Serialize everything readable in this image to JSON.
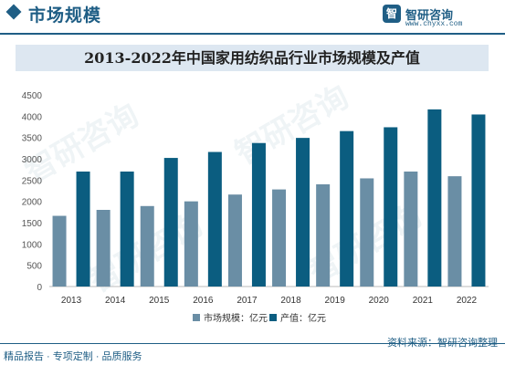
{
  "header": {
    "section_title": "市场规模",
    "logo_name": "智研咨询",
    "logo_url": "www.chyxx.com"
  },
  "footer": {
    "left": "精品报告 · 专项定制 · 品质服务",
    "right": "资料来源：智研咨询整理"
  },
  "watermark": "智研咨询",
  "colors": {
    "brand": "#1f5e85",
    "series_market": "#6a8ea5",
    "series_output": "#0b5d80",
    "title_band": "#dde7f1"
  },
  "chart_data": {
    "type": "bar",
    "title": "2013-2022年中国家用纺织品行业市场规模及产值",
    "xlabel": "",
    "ylabel": "",
    "ylim": [
      0,
      4500
    ],
    "yticks": [
      0,
      500,
      1000,
      1500,
      2000,
      2500,
      3000,
      3500,
      4000,
      4500
    ],
    "grid": false,
    "legend_position": "bottom",
    "categories": [
      "2013",
      "2014",
      "2015",
      "2016",
      "2017",
      "2018",
      "2019",
      "2020",
      "2021",
      "2022"
    ],
    "series": [
      {
        "name": "市场规模：亿元",
        "values": [
          1660,
          1800,
          1890,
          2000,
          2160,
          2280,
          2400,
          2540,
          2700,
          2590
        ]
      },
      {
        "name": "产值：亿元",
        "values": [
          2700,
          2700,
          3020,
          3160,
          3370,
          3490,
          3650,
          3740,
          4160,
          4040
        ]
      }
    ]
  }
}
